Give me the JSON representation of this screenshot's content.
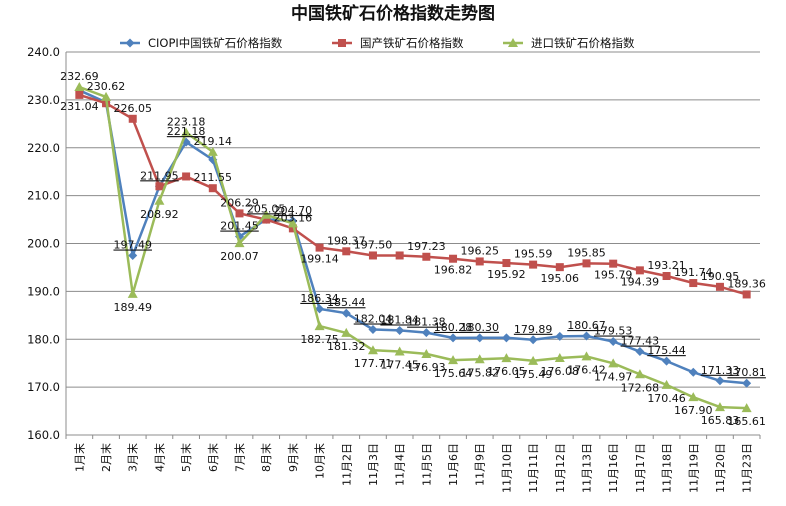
{
  "chart_data": {
    "type": "line",
    "title": "中国铁矿石价格指数走势图",
    "xlabel": "",
    "ylabel": "",
    "ylim": [
      160.0,
      240.0
    ],
    "yticks": [
      "160.0",
      "170.0",
      "180.0",
      "190.0",
      "200.0",
      "210.0",
      "220.0",
      "230.0",
      "240.0"
    ],
    "grid": "horizontal",
    "legend_position": "top",
    "categories": [
      "1月末",
      "2月末",
      "3月末",
      "4月末",
      "5月末",
      "6月末",
      "7月末",
      "8月末",
      "9月末",
      "10月末",
      "11月2日",
      "11月3日",
      "11月4日",
      "11月5日",
      "11月6日",
      "11月9日",
      "11月10日",
      "11月11日",
      "11月12日",
      "11月13日",
      "11月16日",
      "11月17日",
      "11月18日",
      "11月19日",
      "11月20日",
      "11月23日"
    ],
    "series": [
      {
        "name": "CIOPI中国铁矿石价格指数",
        "color": "#4F81BD",
        "marker": "diamond",
        "values": [
          232.0,
          229.5,
          197.49,
          211.95,
          221.18,
          217.5,
          201.45,
          205.05,
          204.7,
          186.34,
          185.44,
          182.04,
          181.84,
          181.38,
          180.28,
          180.3,
          180.3,
          179.89,
          180.6,
          180.67,
          179.53,
          177.43,
          175.44,
          173.1,
          171.33,
          170.81
        ],
        "labels": [
          null,
          null,
          "197.49",
          "211.95",
          "221.18",
          null,
          "201.45",
          "205.05",
          "204.70",
          "186.34",
          "185.44",
          "182.04",
          "181.84",
          "181.38",
          "180.28",
          "180.30",
          null,
          "179.89",
          null,
          "180.67",
          "179.53",
          "177.43",
          "175.44",
          null,
          "171.33",
          "170.81"
        ]
      },
      {
        "name": "国产铁矿石价格指数",
        "color": "#C0504D",
        "marker": "square",
        "values": [
          231.04,
          229.3,
          226.05,
          211.95,
          214.0,
          211.55,
          206.29,
          205.0,
          203.16,
          199.14,
          198.37,
          197.5,
          197.5,
          197.23,
          196.82,
          196.25,
          195.92,
          195.59,
          195.06,
          195.85,
          195.79,
          194.39,
          193.21,
          191.74,
          190.95,
          189.36
        ],
        "labels": [
          "231.04",
          null,
          "226.05",
          null,
          null,
          "211.55",
          "206.29",
          null,
          "203.16",
          "199.14",
          "198.37",
          "197.50",
          null,
          "197.23",
          "196.82",
          "196.25",
          "195.92",
          "195.59",
          "195.06",
          "195.85",
          "195.79",
          "194.39",
          "193.21",
          "191.74",
          "190.95",
          "189.36"
        ]
      },
      {
        "name": "进口铁矿石价格指数",
        "color": "#9BBB59",
        "marker": "triangle",
        "values": [
          232.69,
          230.62,
          189.49,
          208.92,
          223.18,
          219.14,
          200.07,
          206.0,
          204.2,
          182.75,
          181.32,
          177.71,
          177.45,
          176.93,
          175.64,
          175.82,
          176.05,
          175.49,
          176.08,
          176.42,
          174.97,
          172.68,
          170.46,
          167.9,
          165.83,
          165.61
        ],
        "labels": [
          "232.69",
          "230.62",
          "189.49",
          "208.92",
          "223.18",
          "219.14",
          "200.07",
          null,
          null,
          "182.75",
          "181.32",
          "177.71",
          "177.45",
          "176.93",
          "175.64",
          "175.82",
          "176.05",
          "175.49",
          "176.08",
          "176.42",
          "174.97",
          "172.68",
          "170.46",
          "167.90",
          "165.83",
          "165.61"
        ]
      }
    ]
  }
}
